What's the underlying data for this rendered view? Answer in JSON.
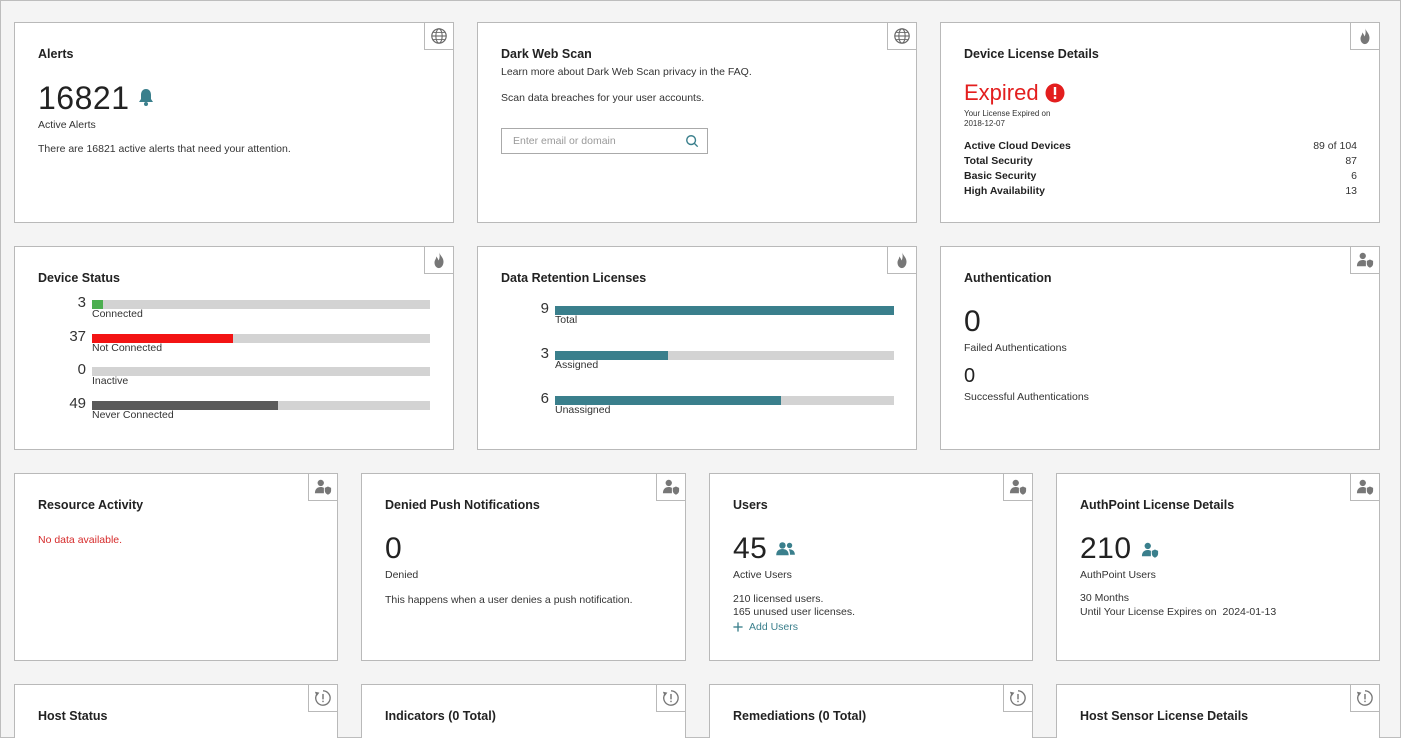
{
  "alerts": {
    "title": "Alerts",
    "count": "16821",
    "count_label": "Active Alerts",
    "description": "There are 16821 active alerts that need your attention.",
    "icon": "bell-icon"
  },
  "dark_web": {
    "title": "Dark Web Scan",
    "line1": "Learn more about Dark Web Scan privacy in the FAQ.",
    "line2": "Scan data breaches for your user accounts.",
    "placeholder": "Enter email or domain"
  },
  "license": {
    "title": "Device License Details",
    "status": "Expired",
    "expired_on_label": "Your License Expired on",
    "expired_on": "2018-12-07",
    "rows": [
      {
        "key": "Active Cloud Devices",
        "value": "89 of 104"
      },
      {
        "key": "Total Security",
        "value": "87"
      },
      {
        "key": "Basic Security",
        "value": "6"
      },
      {
        "key": "High Availability",
        "value": "13"
      }
    ]
  },
  "device_status": {
    "title": "Device Status",
    "max": 89,
    "items": [
      {
        "value": "3",
        "label": "Connected",
        "num": 3,
        "color": "#4caf50"
      },
      {
        "value": "37",
        "label": "Not Connected",
        "num": 37,
        "color": "#f31414"
      },
      {
        "value": "0",
        "label": "Inactive",
        "num": 0,
        "color": "#999999"
      },
      {
        "value": "49",
        "label": "Never Connected",
        "num": 49,
        "color": "#5a5a5a"
      }
    ]
  },
  "retention": {
    "title": "Data Retention Licenses",
    "max": 9,
    "items": [
      {
        "value": "9",
        "label": "Total",
        "num": 9
      },
      {
        "value": "3",
        "label": "Assigned",
        "num": 3
      },
      {
        "value": "6",
        "label": "Unassigned",
        "num": 6
      }
    ]
  },
  "authentication": {
    "title": "Authentication",
    "failed": "0",
    "failed_label": "Failed Authentications",
    "success": "0",
    "success_label": "Successful Authentications"
  },
  "resource": {
    "title": "Resource Activity",
    "empty": "No data available."
  },
  "denied_push": {
    "title": "Denied Push Notifications",
    "count": "0",
    "count_label": "Denied",
    "description": "This happens when a user denies a push notification."
  },
  "users": {
    "title": "Users",
    "count": "45",
    "count_label": "Active Users",
    "licensed": "210 licensed users.",
    "unused": "165 unused user licenses.",
    "add_label": "Add Users"
  },
  "authpoint": {
    "title": "AuthPoint License Details",
    "count": "210",
    "count_label": "AuthPoint Users",
    "months": "30 Months",
    "until_label": "Until Your License Expires on",
    "until_date": "2024-01-13"
  },
  "bottom_titles": {
    "host_status": "Host Status",
    "indicators": "Indicators (0 Total)",
    "remediations": "Remediations (0 Total)",
    "host_sensor": "Host Sensor License Details"
  },
  "colors": {
    "accent": "#3a7f8c",
    "error": "#e31e1e",
    "track": "#d3d3d3"
  }
}
